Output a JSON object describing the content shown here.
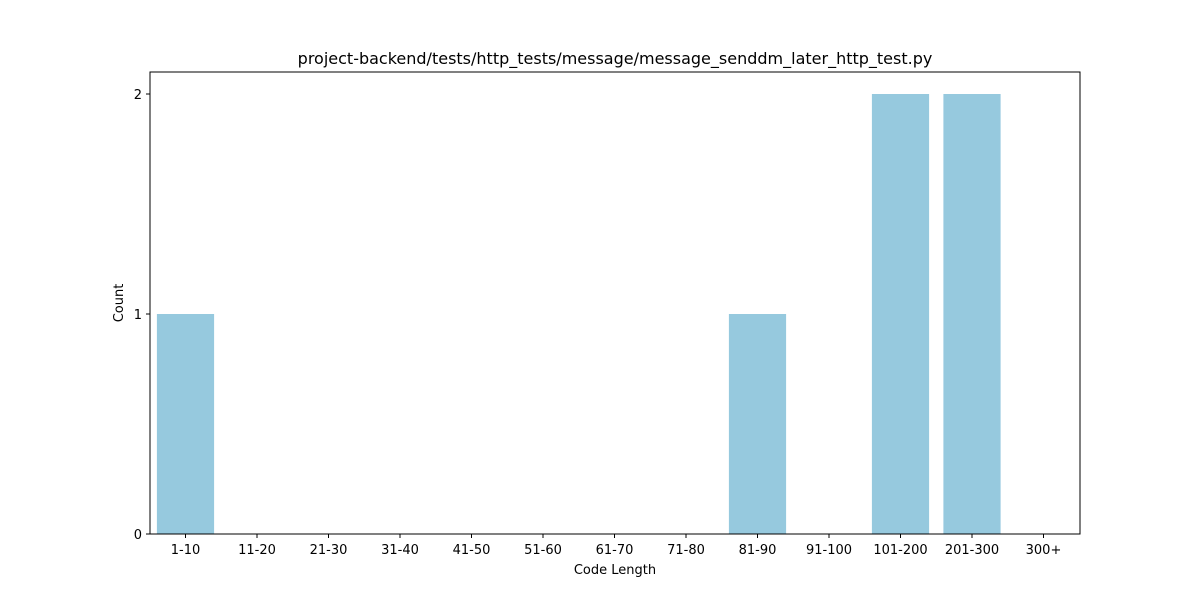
{
  "chart_data": {
    "type": "bar",
    "title": "project-backend/tests/http_tests/message/message_senddm_later_http_test.py",
    "xlabel": "Code Length",
    "ylabel": "Count",
    "categories": [
      "1-10",
      "11-20",
      "21-30",
      "31-40",
      "41-50",
      "51-60",
      "61-70",
      "71-80",
      "81-90",
      "91-100",
      "101-200",
      "201-300",
      "300+"
    ],
    "values": [
      1,
      0,
      0,
      0,
      0,
      0,
      0,
      0,
      1,
      0,
      2,
      2,
      0
    ],
    "ylim": [
      0,
      2.1
    ],
    "yticks": [
      0,
      1,
      2
    ],
    "bar_color": "#96c9de",
    "grid": false,
    "legend": "none"
  }
}
